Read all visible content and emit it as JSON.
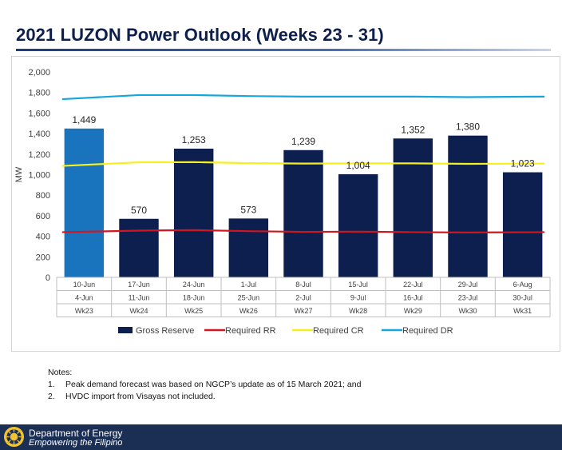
{
  "title": "2021 LUZON Power Outlook (Weeks 23 - 31)",
  "chart_data": {
    "type": "bar",
    "ylabel": "MW",
    "ylim": [
      0,
      2000
    ],
    "yticks": [
      "0",
      "200",
      "400",
      "600",
      "800",
      "1,000",
      "1,200",
      "1,400",
      "1,600",
      "1,800",
      "2,000"
    ],
    "grid": false,
    "legend_position": "bottom",
    "categories": [
      {
        "end": "10-Jun",
        "start": "4-Jun",
        "week": "Wk23"
      },
      {
        "end": "17-Jun",
        "start": "11-Jun",
        "week": "Wk24"
      },
      {
        "end": "24-Jun",
        "start": "18-Jun",
        "week": "Wk25"
      },
      {
        "end": "1-Jul",
        "start": "25-Jun",
        "week": "Wk26"
      },
      {
        "end": "8-Jul",
        "start": "2-Jul",
        "week": "Wk27"
      },
      {
        "end": "15-Jul",
        "start": "9-Jul",
        "week": "Wk28"
      },
      {
        "end": "22-Jul",
        "start": "16-Jul",
        "week": "Wk29"
      },
      {
        "end": "29-Jul",
        "start": "23-Jul",
        "week": "Wk30"
      },
      {
        "end": "6-Aug",
        "start": "30-Jul",
        "week": "Wk31"
      }
    ],
    "bar_series": {
      "name": "Gross Reserve",
      "values": [
        1449,
        570,
        1253,
        573,
        1239,
        1004,
        1352,
        1380,
        1023
      ],
      "labels": [
        "1,449",
        "570",
        "1,253",
        "573",
        "1,239",
        "1,004",
        "1,352",
        "1,380",
        "1,023"
      ],
      "color": "#0c1f4f",
      "highlight_color": "#1a74bd",
      "highlight_index": 0
    },
    "line_series": [
      {
        "name": "Required RR",
        "color": "#d0161f",
        "values": [
          440,
          455,
          460,
          450,
          443,
          445,
          440,
          437,
          440
        ]
      },
      {
        "name": "Required CR",
        "color": "#f5f01e",
        "values": [
          1085,
          1120,
          1122,
          1112,
          1108,
          1110,
          1110,
          1105,
          1108
        ]
      },
      {
        "name": "Required DR",
        "color": "#16a6dd",
        "values": [
          1735,
          1775,
          1775,
          1765,
          1760,
          1760,
          1760,
          1755,
          1760
        ]
      }
    ]
  },
  "notes": {
    "heading": "Notes:",
    "items": [
      {
        "num": "1.",
        "text": "Peak demand forecast was based on NGCP’s update as of 15 March 2021; and"
      },
      {
        "num": "2.",
        "text": "HVDC import from Visayas not included."
      }
    ]
  },
  "footer": {
    "org": "Department of Energy",
    "tagline": "Empowering the Filipino",
    "seal_icon": "doe-seal-icon"
  }
}
